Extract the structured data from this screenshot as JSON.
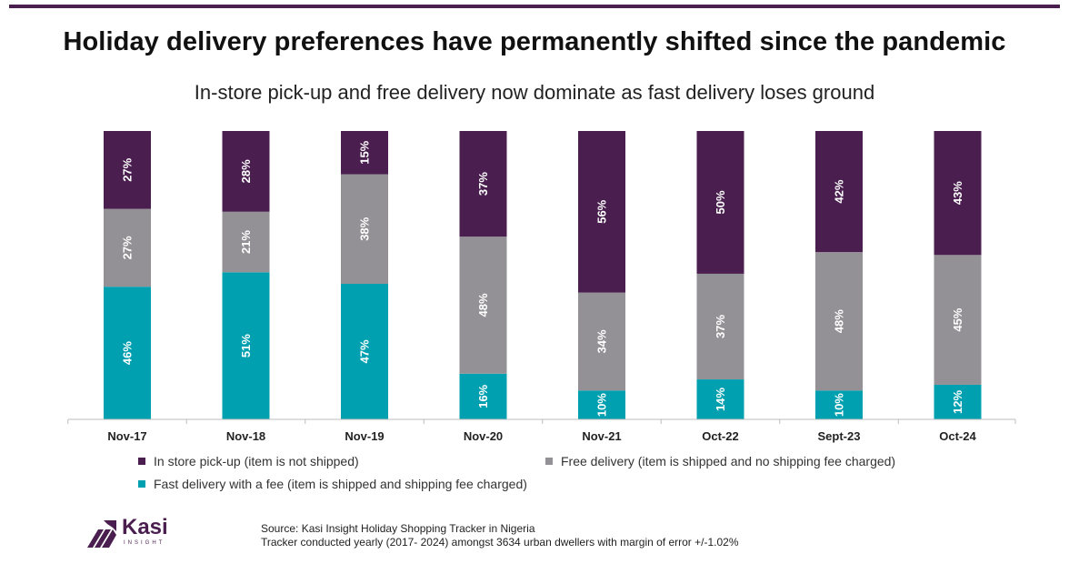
{
  "title": "Holiday delivery preferences have permanently shifted since the pandemic",
  "subtitle": "In-store pick-up and free delivery now dominate as fast delivery loses ground",
  "chart_data": {
    "type": "bar",
    "stacked": true,
    "categories": [
      "Nov-17",
      "Nov-18",
      "Nov-19",
      "Nov-20",
      "Nov-21",
      "Oct-22",
      "Sept-23",
      "Oct-24"
    ],
    "series": [
      {
        "name": "Fast delivery with a fee (item is shipped and shipping fee charged)",
        "color": "#00a0b0",
        "values": [
          46,
          51,
          47,
          16,
          10,
          14,
          10,
          12
        ]
      },
      {
        "name": "Free delivery (item is shipped and no shipping fee charged)",
        "color": "#939196",
        "values": [
          27,
          21,
          38,
          48,
          34,
          37,
          48,
          45
        ]
      },
      {
        "name": "In store pick-up (item is not shipped)",
        "color": "#4a1f4f",
        "values": [
          27,
          28,
          15,
          37,
          56,
          50,
          42,
          43
        ]
      }
    ],
    "value_suffix": "%",
    "grid": false,
    "legend_position": "bottom"
  },
  "legend": {
    "pickup": "In store pick-up (item is not shipped)",
    "free": "Free delivery (item is shipped and no shipping fee charged)",
    "fast": "Fast delivery with a fee (item is shipped and shipping fee charged)"
  },
  "logo": {
    "name": "Kasi",
    "sub": "INSIGHT"
  },
  "source": {
    "line1": "Source: Kasi Insight Holiday Shopping Tracker in Nigeria",
    "line2": "Tracker conducted yearly (2017- 2024) amongst 3634 urban dwellers with margin of error +/-1.02%"
  }
}
